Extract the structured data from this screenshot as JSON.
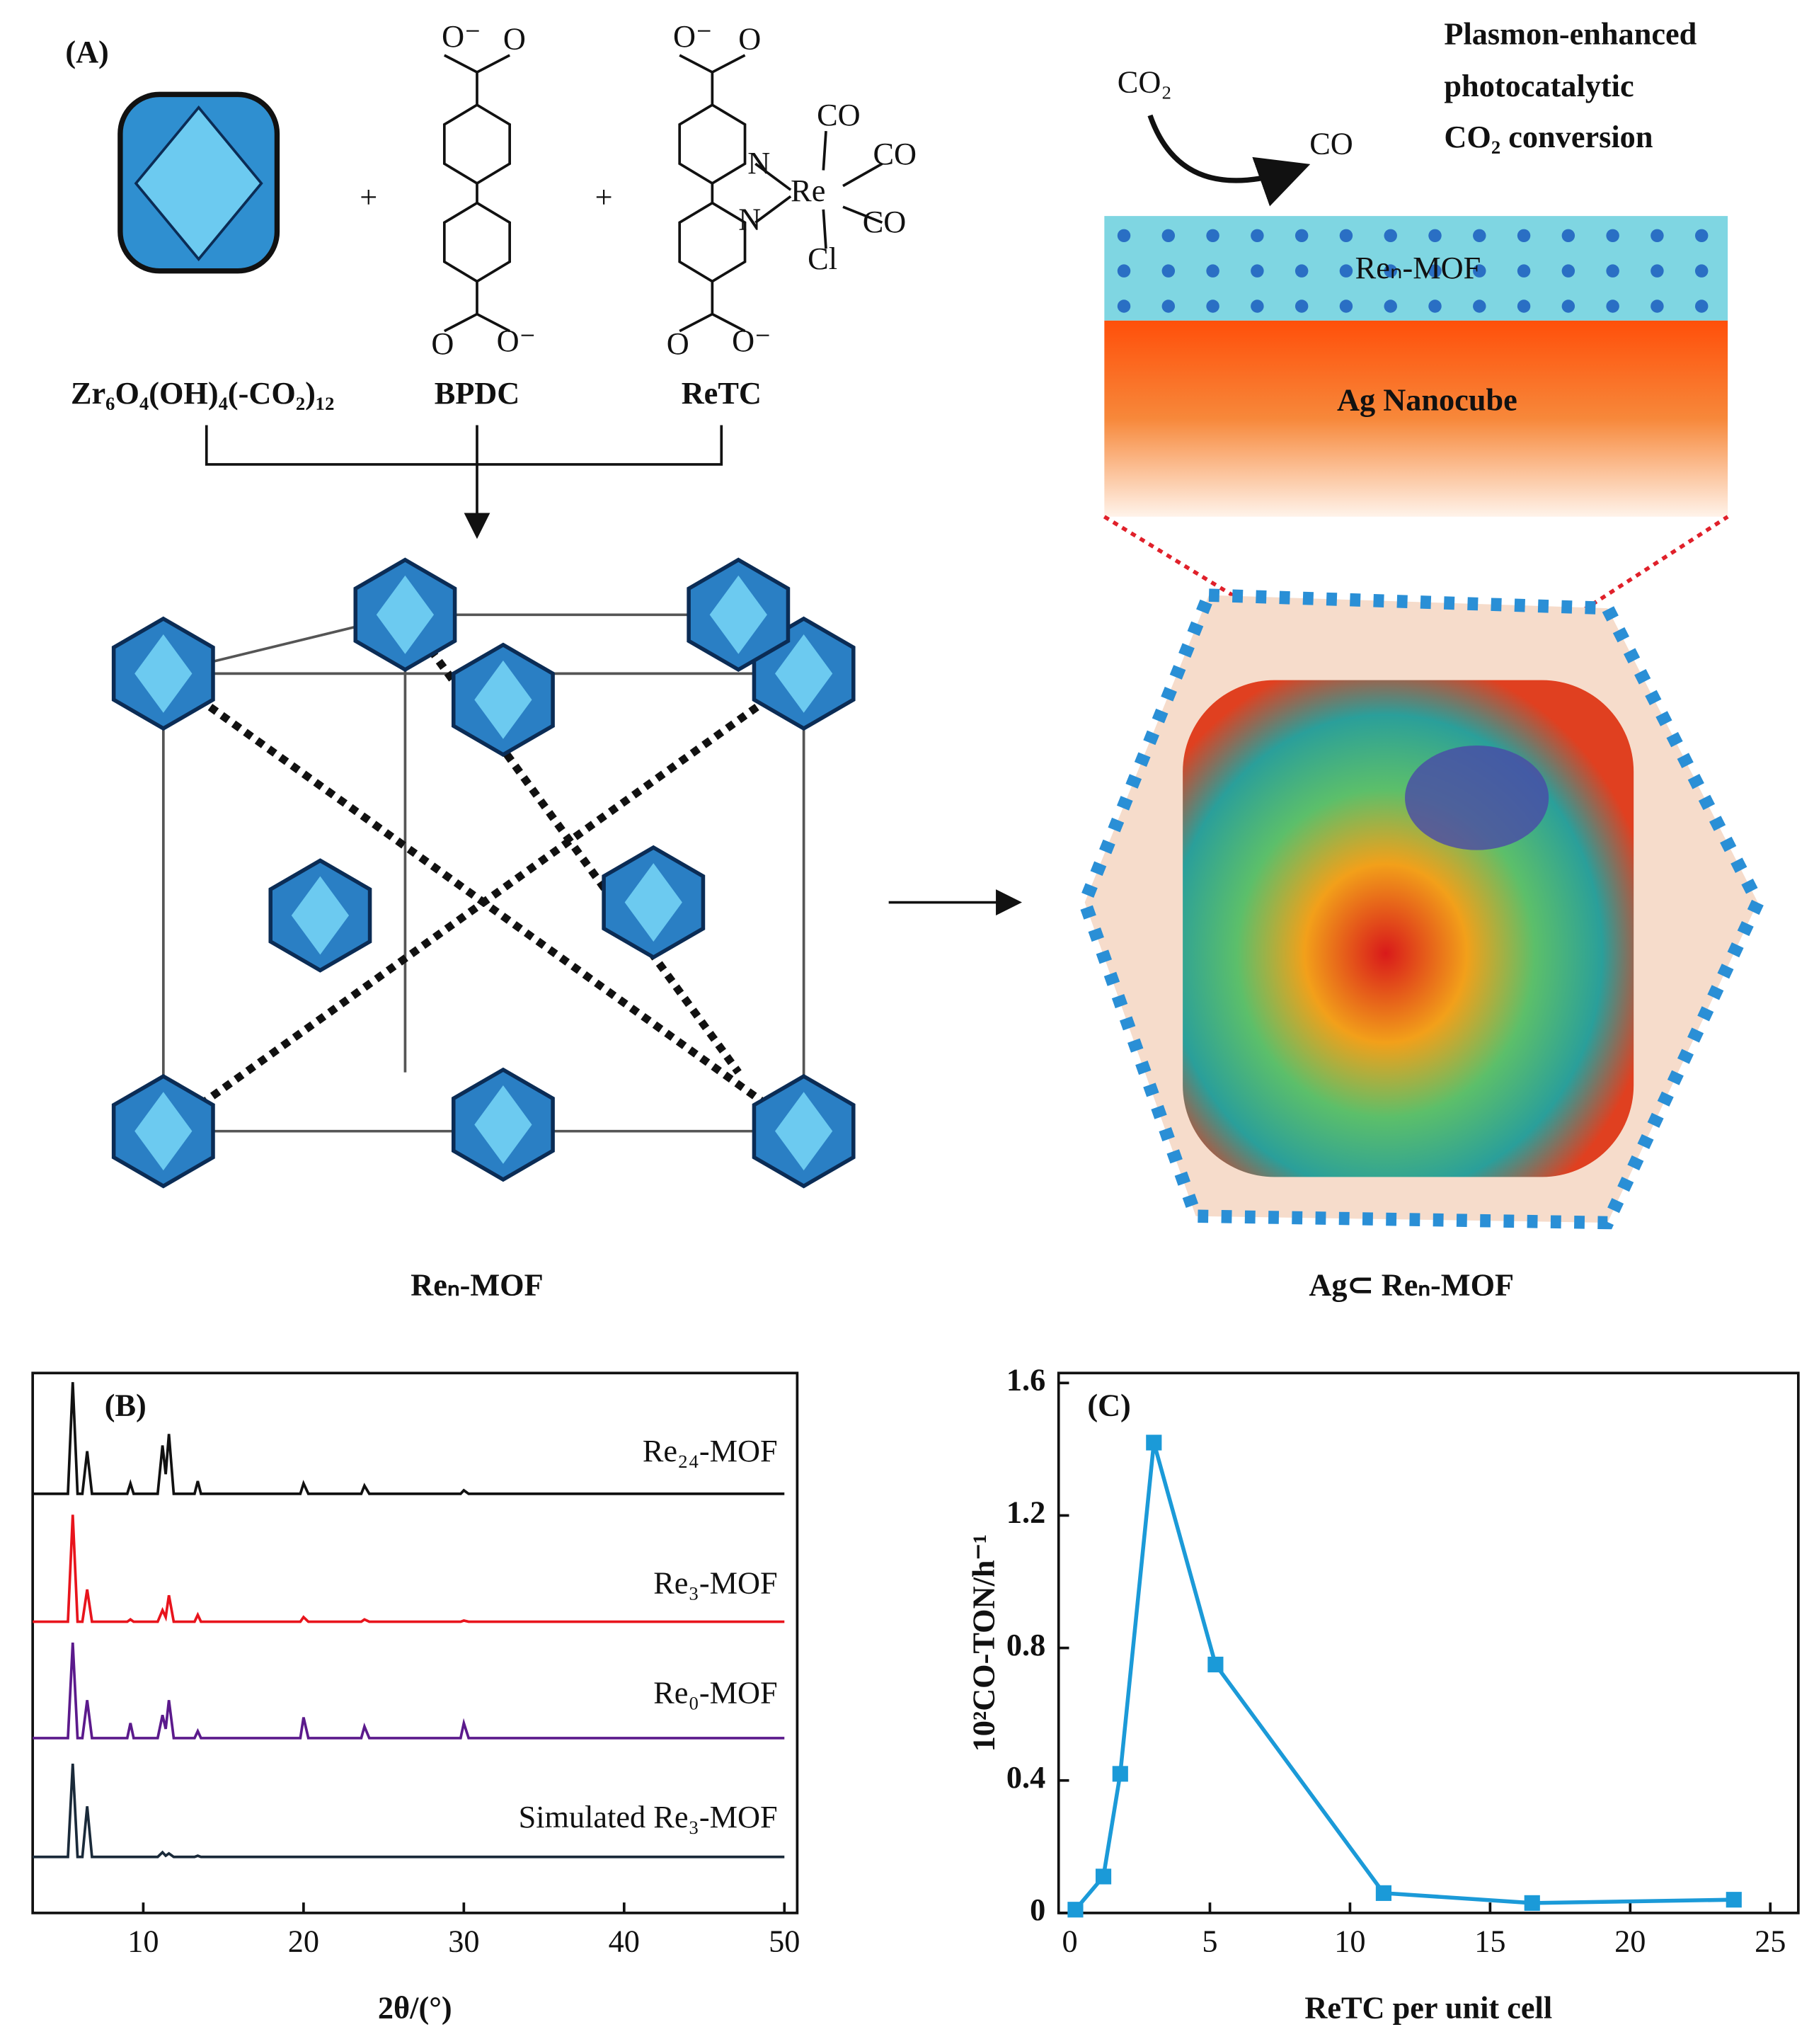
{
  "panel_a": {
    "label": "(A)",
    "cluster_formula": "Zr₆O₄(OH)₄(-CO₂)₁₂",
    "linker": "BPDC",
    "complex": "ReTC",
    "plus": [
      "+",
      "+"
    ],
    "bpdc_atoms": [
      "O⁻",
      "O",
      "O",
      "O⁻"
    ],
    "retc_atoms": [
      "O⁻",
      "O",
      "N",
      "N",
      "Re",
      "CO",
      "CO",
      "CO",
      "Cl",
      "O",
      "O⁻"
    ],
    "mof_caption": "Reₙ-MOF",
    "composite_caption": "Ag⊂ Reₙ-MOF",
    "reaction": {
      "reactant": "CO₂",
      "product": "CO"
    },
    "process_title": [
      "Plasmon-enhanced",
      "photocatalytic",
      "CO₂ conversion"
    ],
    "layers": [
      "Reₙ-MOF",
      "Ag Nanocube"
    ]
  },
  "chart_data": [
    {
      "type": "line",
      "label": "(B)",
      "x_label": "2θ/(°)",
      "xlim": [
        3.1,
        50.8
      ],
      "xticks": [
        10,
        20,
        30,
        40,
        50
      ],
      "x": [
        3.1,
        5.3,
        5.6,
        5.9,
        6.2,
        6.5,
        6.8,
        9.0,
        9.2,
        9.4,
        10.9,
        11.2,
        11.4,
        11.6,
        11.9,
        13.2,
        13.4,
        13.6,
        19.8,
        20.0,
        20.3,
        23.6,
        23.8,
        24.1,
        29.8,
        30.0,
        30.3,
        50.0
      ],
      "series": [
        {
          "name": "Re₂₄-MOF",
          "color": "#111111",
          "values": [
            3,
            3,
            100,
            3,
            3,
            40,
            3,
            3,
            12,
            3,
            3,
            45,
            20,
            55,
            3,
            3,
            14,
            3,
            3,
            12,
            3,
            3,
            10,
            3,
            3,
            6,
            3,
            3
          ]
        },
        {
          "name": "Re₃-MOF",
          "color": "#e8141c",
          "values": [
            2,
            2,
            95,
            2,
            2,
            30,
            2,
            2,
            4,
            2,
            2,
            12,
            6,
            25,
            2,
            2,
            8,
            2,
            2,
            6,
            2,
            2,
            4,
            2,
            2,
            3,
            2,
            2
          ]
        },
        {
          "name": "Re₀-MOF",
          "color": "#5b1a8c",
          "values": [
            2,
            2,
            85,
            2,
            2,
            35,
            2,
            2,
            15,
            2,
            2,
            22,
            10,
            35,
            2,
            2,
            8,
            2,
            2,
            20,
            2,
            2,
            12,
            2,
            2,
            15,
            2,
            2
          ]
        },
        {
          "name": "Simulated Re₃-MOF",
          "color": "#1a2a3a",
          "values": [
            1,
            1,
            82,
            1,
            1,
            45,
            1,
            1,
            1,
            1,
            1,
            5,
            2,
            4,
            1,
            1,
            2,
            1,
            1,
            1,
            1,
            1,
            1,
            1,
            1,
            1,
            1,
            1
          ]
        }
      ]
    },
    {
      "type": "line",
      "label": "(C)",
      "x_label": "ReTC per unit cell",
      "y_label": "10²CO-TON/h⁻¹",
      "xlim": [
        -0.4,
        26
      ],
      "xticks": [
        0,
        5,
        10,
        15,
        20,
        25
      ],
      "ylim": [
        0,
        1.63
      ],
      "yticks": [
        0,
        0.4,
        0.8,
        1.2,
        1.6
      ],
      "x": [
        0.2,
        1.2,
        1.8,
        3.0,
        5.2,
        11.2,
        16.5,
        23.7
      ],
      "series": [
        {
          "color": "#1b9ad8",
          "values": [
            0.01,
            0.11,
            0.42,
            1.42,
            0.75,
            0.06,
            0.03,
            0.04
          ]
        }
      ]
    }
  ]
}
